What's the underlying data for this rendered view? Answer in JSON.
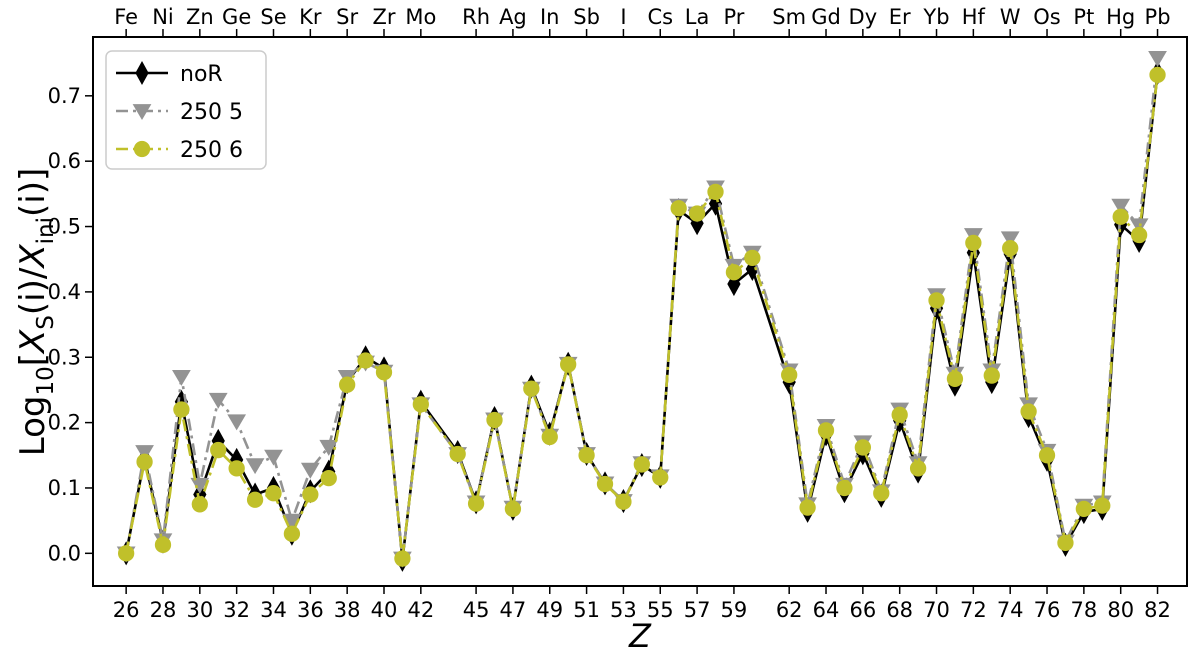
{
  "chart_data": {
    "type": "line",
    "xlabel": "Z",
    "ylabel_parts": {
      "pre": "Log",
      "pre_sub": "10",
      "open": "[",
      "x1": "X",
      "x1_sub": "S",
      "mid": "(i)/",
      "x2": "X",
      "x2_sub": "ini",
      "end": "(i)]"
    },
    "xlim": [
      24.2,
      83.6
    ],
    "ylim": [
      -0.05,
      0.79
    ],
    "xticks": [
      26,
      28,
      30,
      32,
      34,
      36,
      38,
      40,
      42,
      45,
      47,
      49,
      51,
      53,
      55,
      57,
      59,
      62,
      64,
      66,
      68,
      70,
      72,
      74,
      76,
      78,
      80,
      82
    ],
    "yticks": [
      0.0,
      0.1,
      0.2,
      0.3,
      0.4,
      0.5,
      0.6,
      0.7
    ],
    "ytick_labels": [
      "0.0",
      "0.1",
      "0.2",
      "0.3",
      "0.4",
      "0.5",
      "0.6",
      "0.7"
    ],
    "top_labels": [
      {
        "z": 26,
        "el": "Fe"
      },
      {
        "z": 28,
        "el": "Ni"
      },
      {
        "z": 30,
        "el": "Zn"
      },
      {
        "z": 32,
        "el": "Ge"
      },
      {
        "z": 34,
        "el": "Se"
      },
      {
        "z": 36,
        "el": "Kr"
      },
      {
        "z": 38,
        "el": "Sr"
      },
      {
        "z": 40,
        "el": "Zr"
      },
      {
        "z": 42,
        "el": "Mo"
      },
      {
        "z": 45,
        "el": "Rh"
      },
      {
        "z": 47,
        "el": "Ag"
      },
      {
        "z": 49,
        "el": "In"
      },
      {
        "z": 51,
        "el": "Sb"
      },
      {
        "z": 53,
        "el": "I"
      },
      {
        "z": 55,
        "el": "Cs"
      },
      {
        "z": 57,
        "el": "La"
      },
      {
        "z": 59,
        "el": "Pr"
      },
      {
        "z": 62,
        "el": "Sm"
      },
      {
        "z": 64,
        "el": "Gd"
      },
      {
        "z": 66,
        "el": "Dy"
      },
      {
        "z": 68,
        "el": "Er"
      },
      {
        "z": 70,
        "el": "Yb"
      },
      {
        "z": 72,
        "el": "Hf"
      },
      {
        "z": 74,
        "el": "W"
      },
      {
        "z": 76,
        "el": "Os"
      },
      {
        "z": 78,
        "el": "Pt"
      },
      {
        "z": 80,
        "el": "Hg"
      },
      {
        "z": 82,
        "el": "Pb"
      }
    ],
    "x": [
      26,
      27,
      28,
      29,
      30,
      31,
      32,
      33,
      34,
      35,
      36,
      37,
      38,
      39,
      40,
      41,
      42,
      44,
      45,
      46,
      47,
      48,
      49,
      50,
      51,
      52,
      53,
      54,
      55,
      56,
      57,
      58,
      59,
      60,
      62,
      63,
      64,
      65,
      66,
      67,
      68,
      69,
      70,
      71,
      72,
      73,
      74,
      75,
      76,
      77,
      78,
      79,
      80,
      81,
      82
    ],
    "series": [
      {
        "name": "noR",
        "color": "#000000",
        "marker": "diamond",
        "dash": "solid",
        "values": [
          0.0,
          0.145,
          0.018,
          0.232,
          0.09,
          0.172,
          0.143,
          0.09,
          0.1,
          0.03,
          0.095,
          0.125,
          0.262,
          0.3,
          0.283,
          -0.01,
          0.232,
          0.155,
          0.078,
          0.207,
          0.068,
          0.255,
          0.183,
          0.29,
          0.152,
          0.107,
          0.08,
          0.135,
          0.117,
          0.525,
          0.505,
          0.535,
          0.412,
          0.435,
          0.262,
          0.065,
          0.182,
          0.095,
          0.153,
          0.088,
          0.203,
          0.125,
          0.375,
          0.258,
          0.46,
          0.262,
          0.458,
          0.21,
          0.143,
          0.013,
          0.063,
          0.068,
          0.503,
          0.478,
          0.735
        ]
      },
      {
        "name": "250 5",
        "color": "#939393",
        "marker": "triangle-down",
        "dash": "dashdot",
        "values": [
          0.0,
          0.155,
          0.02,
          0.27,
          0.105,
          0.235,
          0.202,
          0.135,
          0.148,
          0.05,
          0.128,
          0.163,
          0.27,
          0.292,
          0.278,
          -0.008,
          0.228,
          0.152,
          0.078,
          0.205,
          0.07,
          0.252,
          0.18,
          0.29,
          0.152,
          0.107,
          0.08,
          0.138,
          0.118,
          0.532,
          0.52,
          0.56,
          0.44,
          0.46,
          0.28,
          0.075,
          0.195,
          0.105,
          0.17,
          0.095,
          0.22,
          0.138,
          0.395,
          0.275,
          0.487,
          0.28,
          0.482,
          0.228,
          0.157,
          0.018,
          0.073,
          0.078,
          0.532,
          0.502,
          0.758
        ]
      },
      {
        "name": "250 6",
        "color": "#c0c02a",
        "marker": "circle",
        "dash": "dashdot",
        "values": [
          0.0,
          0.14,
          0.013,
          0.22,
          0.075,
          0.158,
          0.13,
          0.082,
          0.092,
          0.03,
          0.09,
          0.115,
          0.258,
          0.295,
          0.277,
          -0.008,
          0.228,
          0.152,
          0.076,
          0.204,
          0.068,
          0.252,
          0.178,
          0.289,
          0.15,
          0.106,
          0.079,
          0.136,
          0.116,
          0.528,
          0.52,
          0.553,
          0.43,
          0.452,
          0.273,
          0.07,
          0.188,
          0.1,
          0.162,
          0.092,
          0.212,
          0.13,
          0.387,
          0.267,
          0.475,
          0.272,
          0.467,
          0.217,
          0.15,
          0.016,
          0.068,
          0.073,
          0.515,
          0.487,
          0.732
        ]
      }
    ],
    "legend_position": "top-left",
    "grid": false
  }
}
